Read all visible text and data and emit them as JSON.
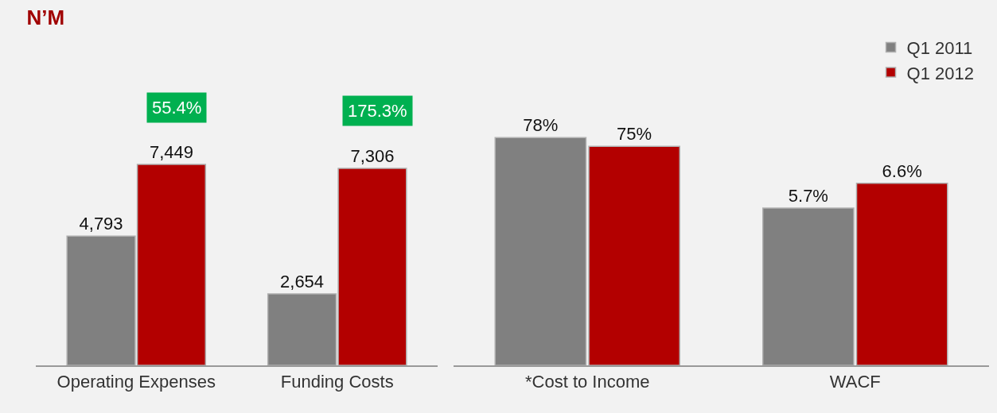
{
  "chart_data": [
    {
      "type": "bar",
      "title": "N’M",
      "categories": [
        "Operating Expenses",
        "Funding Costs"
      ],
      "series": [
        {
          "color": "#808080",
          "values": [
            4793,
            2654
          ],
          "value_labels": [
            "4,793",
            "2,654"
          ]
        },
        {
          "color": "#b30000",
          "values": [
            7449,
            7306
          ],
          "value_labels": [
            "7,449",
            "7,306"
          ]
        }
      ],
      "annotations": [
        {
          "text": "55.4%",
          "x": "Operating Expenses",
          "y": 7449
        },
        {
          "text": "175.3%",
          "x": "Funding Costs",
          "y": 7306
        }
      ],
      "grid": false,
      "legend": false
    },
    {
      "type": "bar",
      "categories": [
        "*Cost to Income",
        "WACF"
      ],
      "series": [
        {
          "color": "#808080",
          "values": [
            78,
            null
          ],
          "value_labels": [
            "78%",
            null
          ]
        },
        {
          "color": "#b30000",
          "values": [
            75,
            null
          ],
          "value_labels": [
            "75%",
            null
          ]
        },
        {
          "name": "Q1 2011",
          "color": "#808080",
          "values": [
            null,
            5.7
          ],
          "value_labels": [
            null,
            "5.7%"
          ],
          "axis": "y2"
        },
        {
          "name": "Q1 2012",
          "color": "#b30000",
          "values": [
            null,
            6.6
          ],
          "value_labels": [
            null,
            "6.6%"
          ],
          "axis": "y2"
        }
      ],
      "grid": false,
      "legend": "top right"
    }
  ]
}
